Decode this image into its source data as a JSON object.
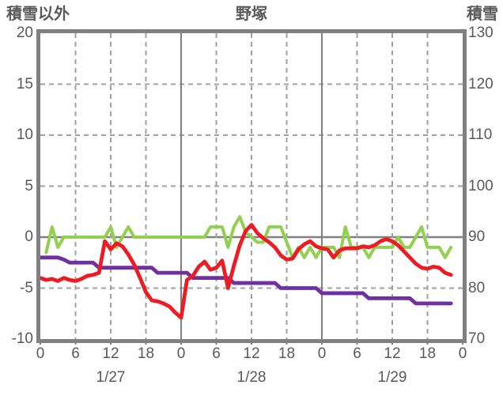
{
  "header": {
    "left_axis_title": "積雪以外",
    "title": "野塚",
    "right_axis_title": "積雪"
  },
  "colors": {
    "red_series": "#ed1c24",
    "purple_series": "#7030a0",
    "green_series": "#92d050",
    "axis_frame": "#808080",
    "minor_grid": "#a0a0a0",
    "label_text": "#595959",
    "background": "#ffffff"
  },
  "chart_data": {
    "type": "line",
    "title": "野塚",
    "grid": "on",
    "legend": "none",
    "left_axis": {
      "label": "積雪以外",
      "min": -10,
      "max": 20,
      "ticks": [
        20,
        15,
        10,
        5,
        0,
        -5,
        -10
      ]
    },
    "right_axis": {
      "label": "積雪",
      "min": 70,
      "max": 130,
      "ticks": [
        130,
        120,
        110,
        100,
        90,
        80,
        70
      ]
    },
    "x_axis": {
      "unit": "hours",
      "min": 0,
      "max": 72,
      "tick_interval": 6,
      "tick_labels": [
        "0",
        "6",
        "12",
        "18",
        "0",
        "6",
        "12",
        "18",
        "0",
        "6",
        "12",
        "18",
        "0"
      ],
      "day_labels": [
        {
          "label": "1/27",
          "center_hour": 12
        },
        {
          "label": "1/28",
          "center_hour": 36
        },
        {
          "label": "1/29",
          "center_hour": 60
        }
      ],
      "solid_gridline_hours": [
        24,
        48
      ],
      "dashed_gridline_hours": [
        6,
        12,
        18,
        30,
        36,
        42,
        54,
        60,
        66
      ]
    },
    "series": [
      {
        "name": "purple-line",
        "axis": "left",
        "color": "#7030a0",
        "start_hour": 0,
        "values": [
          -2,
          -2,
          -2,
          -2,
          -2.2,
          -2.5,
          -2.5,
          -2.5,
          -2.5,
          -2.5,
          -3,
          -3,
          -3,
          -3,
          -3,
          -3,
          -3,
          -3,
          -3,
          -3,
          -3.5,
          -3.5,
          -3.5,
          -3.5,
          -3.5,
          -3.5,
          -4,
          -4,
          -4,
          -4,
          -4,
          -4,
          -4,
          -4.5,
          -4.5,
          -4.5,
          -4.5,
          -4.5,
          -4.5,
          -4.5,
          -4.5,
          -5,
          -5,
          -5,
          -5,
          -5,
          -5,
          -5,
          -5.5,
          -5.5,
          -5.5,
          -5.5,
          -5.5,
          -5.5,
          -5.5,
          -5.5,
          -6,
          -6,
          -6,
          -6,
          -6,
          -6,
          -6,
          -6,
          -6.5,
          -6.5,
          -6.5,
          -6.5,
          -6.5,
          -6.5,
          -6.5
        ]
      },
      {
        "name": "green-line",
        "axis": "right",
        "color": "#92d050",
        "start_hour": 1,
        "values": [
          87,
          92,
          88,
          90,
          90,
          90,
          90,
          90,
          90,
          90,
          90,
          92,
          88,
          90,
          92,
          90,
          90,
          90,
          90,
          90,
          90,
          90,
          90,
          90,
          90,
          90,
          90,
          90,
          92,
          92,
          92,
          88,
          92,
          94,
          91,
          90,
          89,
          89,
          92,
          92,
          92,
          89,
          86,
          88,
          86,
          88,
          86,
          88,
          88,
          88,
          86,
          92,
          88,
          88,
          88,
          86,
          88,
          88,
          88,
          88,
          90,
          88,
          88,
          90,
          92,
          88,
          88,
          88,
          86,
          88
        ]
      },
      {
        "name": "red-line",
        "axis": "left",
        "color": "#ed1c24",
        "start_hour": 0,
        "values": [
          -4,
          -4.2,
          -4.1,
          -4.3,
          -4,
          -4.2,
          -4.3,
          -4.1,
          -3.8,
          -3.7,
          -3.5,
          -0.4,
          -1.2,
          -0.6,
          -0.9,
          -1.7,
          -2.7,
          -4,
          -5.4,
          -6.2,
          -6.3,
          -6.5,
          -6.8,
          -7.4,
          -7.9,
          -4.2,
          -3.8,
          -2.9,
          -2.4,
          -3.2,
          -3,
          -2.3,
          -5,
          -2.8,
          -0.8,
          0.6,
          1.2,
          0.4,
          -0.1,
          -0.5,
          -1,
          -1.8,
          -2.2,
          -2.1,
          -1.2,
          -0.7,
          -0.4,
          -0.9,
          -1.1,
          -1.2,
          -2,
          -1.3,
          -1.1,
          -1.1,
          -1.1,
          -0.9,
          -1,
          -0.8,
          -0.4,
          -0.2,
          -0.4,
          -0.8,
          -1.4,
          -2,
          -2.6,
          -3,
          -3.1,
          -2.9,
          -3,
          -3.5,
          -3.7
        ]
      }
    ]
  }
}
